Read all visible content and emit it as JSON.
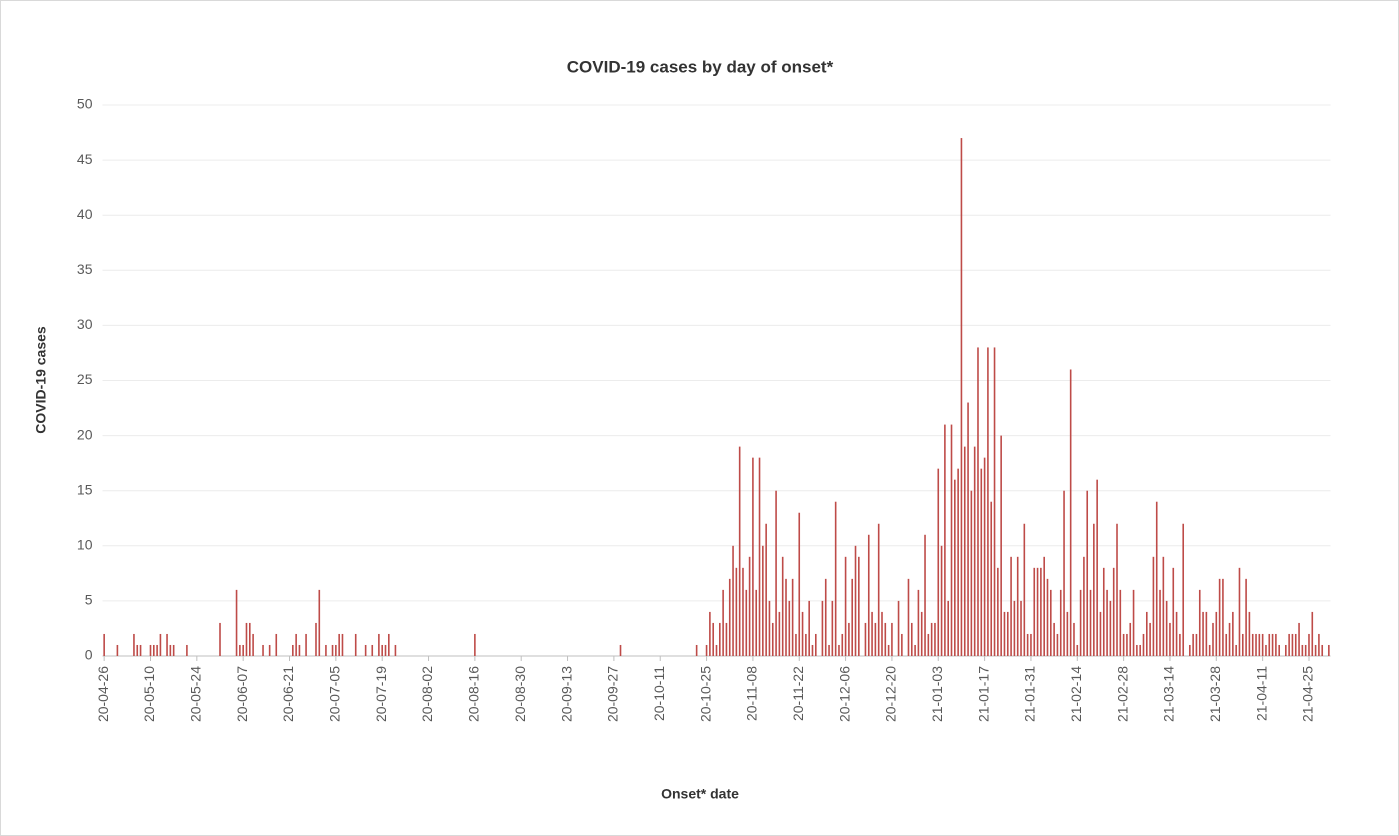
{
  "chart_data": {
    "type": "bar",
    "title": "COVID-19 cases by day of onset*",
    "x_label": "Onset* date",
    "y_label": "COVID-19 cases",
    "color": "#be4b48",
    "ylim": [
      0,
      50
    ],
    "yticks": [
      0,
      5,
      10,
      15,
      20,
      25,
      30,
      35,
      40,
      45,
      50
    ],
    "grid": true,
    "categories": [
      "20-04-26",
      null,
      null,
      null,
      null,
      null,
      null,
      null,
      null,
      null,
      null,
      null,
      null,
      null,
      "20-05-10",
      null,
      null,
      null,
      null,
      null,
      null,
      null,
      null,
      null,
      null,
      null,
      null,
      null,
      "20-05-24",
      null,
      null,
      null,
      null,
      null,
      null,
      null,
      null,
      null,
      null,
      null,
      null,
      null,
      "20-06-07",
      null,
      null,
      null,
      null,
      null,
      null,
      null,
      null,
      null,
      null,
      null,
      null,
      null,
      "20-06-21",
      null,
      null,
      null,
      null,
      null,
      null,
      null,
      null,
      null,
      null,
      null,
      null,
      null,
      "20-07-05",
      null,
      null,
      null,
      null,
      null,
      null,
      null,
      null,
      null,
      null,
      null,
      null,
      null,
      "20-07-19",
      null,
      null,
      null,
      null,
      null,
      null,
      null,
      null,
      null,
      null,
      null,
      null,
      null,
      "20-08-02",
      null,
      null,
      null,
      null,
      null,
      null,
      null,
      null,
      null,
      null,
      null,
      null,
      null,
      "20-08-16",
      null,
      null,
      null,
      null,
      null,
      null,
      null,
      null,
      null,
      null,
      null,
      null,
      null,
      "20-08-30",
      null,
      null,
      null,
      null,
      null,
      null,
      null,
      null,
      null,
      null,
      null,
      null,
      null,
      "20-09-13",
      null,
      null,
      null,
      null,
      null,
      null,
      null,
      null,
      null,
      null,
      null,
      null,
      null,
      "20-09-27",
      null,
      null,
      null,
      null,
      null,
      null,
      null,
      null,
      null,
      null,
      null,
      null,
      null,
      "20-10-11",
      null,
      null,
      null,
      null,
      null,
      null,
      null,
      null,
      null,
      null,
      null,
      null,
      null,
      "20-10-25",
      null,
      null,
      null,
      null,
      null,
      null,
      null,
      null,
      null,
      null,
      null,
      null,
      null,
      "20-11-08",
      null,
      null,
      null,
      null,
      null,
      null,
      null,
      null,
      null,
      null,
      null,
      null,
      null,
      "20-11-22",
      null,
      null,
      null,
      null,
      null,
      null,
      null,
      null,
      null,
      null,
      null,
      null,
      null,
      "20-12-06",
      null,
      null,
      null,
      null,
      null,
      null,
      null,
      null,
      null,
      null,
      null,
      null,
      null,
      "20-12-20",
      null,
      null,
      null,
      null,
      null,
      null,
      null,
      null,
      null,
      null,
      null,
      null,
      null,
      "21-01-03",
      null,
      null,
      null,
      null,
      null,
      null,
      null,
      null,
      null,
      null,
      null,
      null,
      null,
      "21-01-17",
      null,
      null,
      null,
      null,
      null,
      null,
      null,
      null,
      null,
      null,
      null,
      null,
      null,
      "21-01-31",
      null,
      null,
      null,
      null,
      null,
      null,
      null,
      null,
      null,
      null,
      null,
      null,
      null,
      "21-02-14",
      null,
      null,
      null,
      null,
      null,
      null,
      null,
      null,
      null,
      null,
      null,
      null,
      null,
      "21-02-28",
      null,
      null,
      null,
      null,
      null,
      null,
      null,
      null,
      null,
      null,
      null,
      null,
      null,
      "21-03-14",
      null,
      null,
      null,
      null,
      null,
      null,
      null,
      null,
      null,
      null,
      null,
      null,
      null,
      "21-03-28",
      null,
      null,
      null,
      null,
      null,
      null,
      null,
      null,
      null,
      null,
      null,
      null,
      null,
      "21-04-11",
      null,
      null,
      null,
      null,
      null,
      null,
      null,
      null,
      null,
      null,
      null,
      null,
      null,
      "21-04-25",
      null,
      null,
      null,
      null,
      null,
      null
    ],
    "values": [
      2,
      0,
      0,
      0,
      1,
      0,
      0,
      0,
      0,
      2,
      1,
      1,
      0,
      0,
      1,
      1,
      1,
      2,
      0,
      2,
      1,
      1,
      0,
      0,
      0,
      1,
      0,
      0,
      0,
      0,
      0,
      0,
      0,
      0,
      0,
      3,
      0,
      0,
      0,
      0,
      6,
      1,
      1,
      3,
      3,
      2,
      0,
      0,
      1,
      0,
      1,
      0,
      2,
      0,
      0,
      0,
      0,
      1,
      2,
      1,
      0,
      2,
      0,
      0,
      3,
      6,
      0,
      1,
      0,
      1,
      1,
      2,
      2,
      0,
      0,
      0,
      2,
      0,
      0,
      1,
      0,
      1,
      0,
      2,
      1,
      1,
      2,
      0,
      1,
      0,
      0,
      0,
      0,
      0,
      0,
      0,
      0,
      0,
      0,
      0,
      0,
      0,
      0,
      0,
      0,
      0,
      0,
      0,
      0,
      0,
      0,
      0,
      2,
      0,
      0,
      0,
      0,
      0,
      0,
      0,
      0,
      0,
      0,
      0,
      0,
      0,
      0,
      0,
      0,
      0,
      0,
      0,
      0,
      0,
      0,
      0,
      0,
      0,
      0,
      0,
      0,
      0,
      0,
      0,
      0,
      0,
      0,
      0,
      0,
      0,
      0,
      0,
      0,
      0,
      0,
      0,
      1,
      0,
      0,
      0,
      0,
      0,
      0,
      0,
      0,
      0,
      0,
      0,
      0,
      0,
      0,
      0,
      0,
      0,
      0,
      0,
      0,
      0,
      0,
      1,
      0,
      0,
      1,
      4,
      3,
      1,
      3,
      6,
      3,
      7,
      10,
      8,
      19,
      8,
      6,
      9,
      18,
      6,
      18,
      10,
      12,
      5,
      3,
      15,
      4,
      9,
      7,
      5,
      7,
      2,
      13,
      4,
      2,
      5,
      1,
      2,
      0,
      5,
      7,
      1,
      5,
      14,
      1,
      2,
      9,
      3,
      7,
      10,
      9,
      0,
      3,
      11,
      4,
      3,
      12,
      4,
      3,
      1,
      3,
      0,
      5,
      2,
      0,
      7,
      3,
      1,
      6,
      4,
      11,
      2,
      3,
      3,
      17,
      10,
      21,
      5,
      21,
      16,
      17,
      47,
      19,
      23,
      15,
      19,
      28,
      17,
      18,
      28,
      14,
      28,
      8,
      20,
      4,
      4,
      9,
      5,
      9,
      5,
      12,
      2,
      2,
      8,
      8,
      8,
      9,
      7,
      6,
      3,
      2,
      6,
      15,
      4,
      26,
      3,
      1,
      6,
      9,
      15,
      6,
      12,
      16,
      4,
      8,
      6,
      5,
      8,
      12,
      6,
      2,
      2,
      3,
      6,
      1,
      1,
      2,
      4,
      3,
      9,
      14,
      6,
      9,
      5,
      3,
      8,
      4,
      2,
      12,
      0,
      1,
      2,
      2,
      6,
      4,
      4,
      1,
      3,
      4,
      7,
      7,
      2,
      3,
      4,
      1,
      8,
      2,
      7,
      4,
      2,
      2,
      2,
      2,
      1,
      2,
      2,
      2,
      1,
      0,
      1,
      2,
      2,
      2,
      3,
      1,
      1,
      2,
      4,
      1,
      2,
      1,
      0,
      1
    ]
  }
}
